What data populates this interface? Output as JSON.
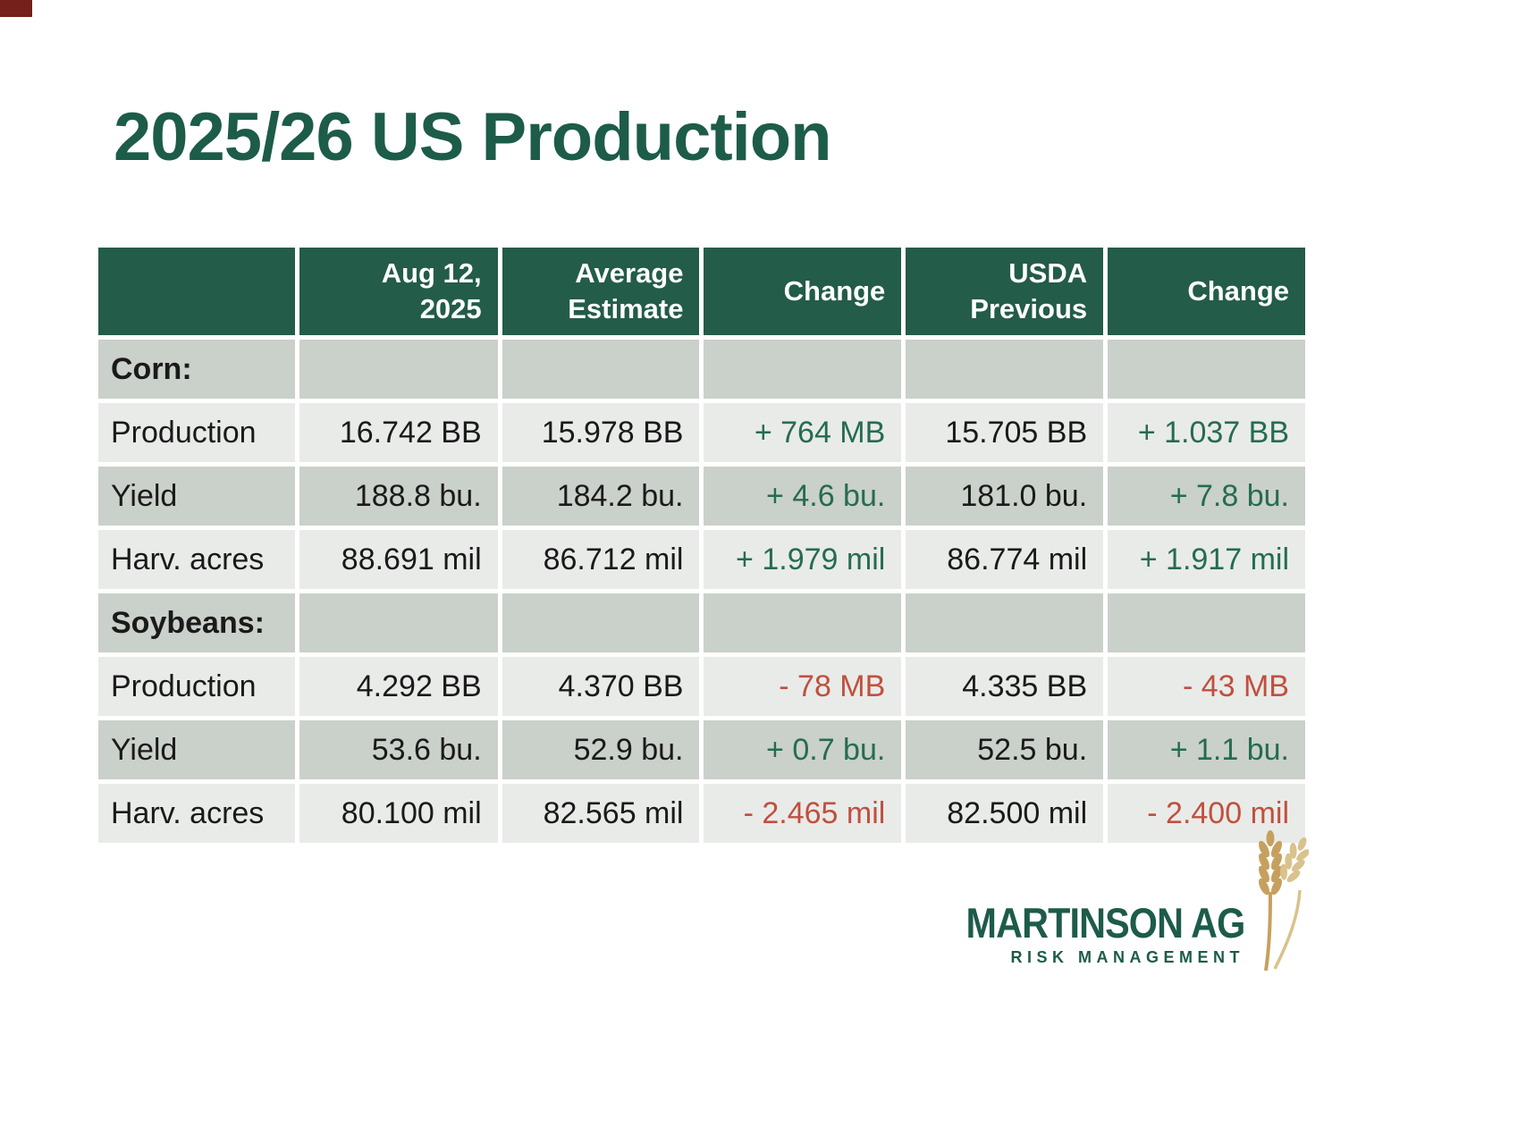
{
  "slide": {
    "title": "2025/26 US Production",
    "colors": {
      "title_green": "#1C5C49",
      "logo_green": "#1D5B4A",
      "header_bg": "#235C48",
      "row_dark": "#CAD0CA",
      "row_light": "#E9EBE9",
      "positive": "#256C50",
      "negative": "#C0503E",
      "text_dark": "#1A1A1A",
      "wheat_gold": "#C6A05E",
      "wheat_light": "#D9C28C",
      "corner_accent": "#75201A"
    }
  },
  "table": {
    "columns": [
      "",
      "Aug 12,\n2025",
      "Average\nEstimate",
      "Change",
      "USDA\nPrevious",
      "Change"
    ],
    "rows": [
      {
        "label": "Corn:",
        "section": true,
        "cells": [
          {
            "text": ""
          },
          {
            "text": ""
          },
          {
            "text": ""
          },
          {
            "text": ""
          },
          {
            "text": ""
          }
        ]
      },
      {
        "label": "Production",
        "section": false,
        "cells": [
          {
            "text": "16.742 BB",
            "tone": "plain"
          },
          {
            "text": "15.978 BB",
            "tone": "plain"
          },
          {
            "text": "+ 764 MB",
            "tone": "pos"
          },
          {
            "text": "15.705 BB",
            "tone": "plain"
          },
          {
            "text": "+ 1.037 BB",
            "tone": "pos"
          }
        ]
      },
      {
        "label": "Yield",
        "section": false,
        "cells": [
          {
            "text": "188.8 bu.",
            "tone": "plain"
          },
          {
            "text": "184.2 bu.",
            "tone": "plain"
          },
          {
            "text": "+ 4.6 bu.",
            "tone": "pos"
          },
          {
            "text": "181.0 bu.",
            "tone": "plain"
          },
          {
            "text": "+ 7.8 bu.",
            "tone": "pos"
          }
        ]
      },
      {
        "label": "Harv. acres",
        "section": false,
        "cells": [
          {
            "text": "88.691 mil",
            "tone": "plain"
          },
          {
            "text": "86.712 mil",
            "tone": "plain"
          },
          {
            "text": "+ 1.979 mil",
            "tone": "pos"
          },
          {
            "text": "86.774 mil",
            "tone": "plain"
          },
          {
            "text": "+ 1.917 mil",
            "tone": "pos"
          }
        ]
      },
      {
        "label": "Soybeans:",
        "section": true,
        "cells": [
          {
            "text": ""
          },
          {
            "text": ""
          },
          {
            "text": ""
          },
          {
            "text": ""
          },
          {
            "text": ""
          }
        ]
      },
      {
        "label": "Production",
        "section": false,
        "cells": [
          {
            "text": "4.292 BB",
            "tone": "plain"
          },
          {
            "text": "4.370 BB",
            "tone": "plain"
          },
          {
            "text": "- 78 MB",
            "tone": "neg"
          },
          {
            "text": "4.335 BB",
            "tone": "plain"
          },
          {
            "text": "- 43 MB",
            "tone": "neg"
          }
        ]
      },
      {
        "label": "Yield",
        "section": false,
        "cells": [
          {
            "text": "53.6 bu.",
            "tone": "plain"
          },
          {
            "text": "52.9 bu.",
            "tone": "plain"
          },
          {
            "text": "+ 0.7 bu.",
            "tone": "pos"
          },
          {
            "text": "52.5 bu.",
            "tone": "plain"
          },
          {
            "text": "+ 1.1 bu.",
            "tone": "pos"
          }
        ]
      },
      {
        "label": "Harv. acres",
        "section": false,
        "cells": [
          {
            "text": "80.100 mil",
            "tone": "plain"
          },
          {
            "text": "82.565 mil",
            "tone": "plain"
          },
          {
            "text": "- 2.465 mil",
            "tone": "neg"
          },
          {
            "text": "82.500 mil",
            "tone": "plain"
          },
          {
            "text": "- 2.400 mil",
            "tone": "neg"
          }
        ]
      }
    ]
  },
  "logo": {
    "line1": "MARTINSON AG",
    "line2": "RISK MANAGEMENT"
  }
}
